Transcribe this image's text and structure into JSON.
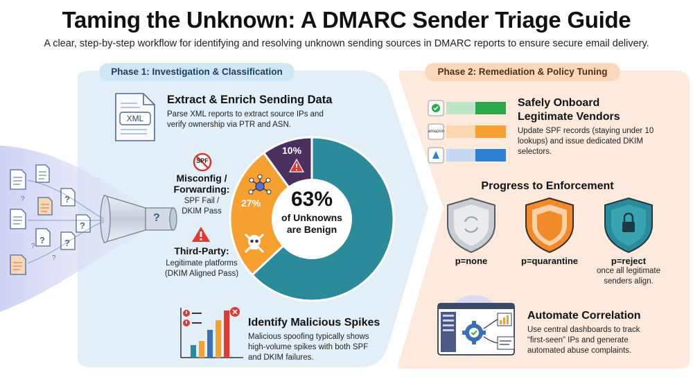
{
  "header": {
    "title": "Taming the Unknown: A DMARC Sender Triage Guide",
    "subtitle": "A clear, step-by-step workflow for identifying and resolving unknown sending sources in DMARC reports to ensure secure email delivery."
  },
  "phase1": {
    "label": "Phase 1: Investigation & Classification",
    "extract": {
      "title": "Extract & Enrich Sending Data",
      "desc": "Parse XML reports to extract source IPs and verify ownership via PTR and ASN.",
      "icon_text": "XML"
    },
    "misconfig": {
      "icon_text": "SPF",
      "title_line1": "Misconfig /",
      "title_line2": "Forwarding:",
      "desc_line1": "SPF Fail /",
      "desc_line2": "DKIM Pass"
    },
    "third_party": {
      "title": "Third-Party:",
      "desc_line1": "Legitimate platforms",
      "desc_line2": "(DKIM Aligned Pass)"
    },
    "spikes": {
      "title": "Identify Malicious Spikes",
      "desc_line1": "Malicious spoofing typically shows",
      "desc_line2": "high-volume spikes with both SPF",
      "desc_line3": "and DKIM failures."
    }
  },
  "chart_data": {
    "type": "pie",
    "center_line1": "63%",
    "center_line2": "of Unknowns",
    "center_line3": "are Benign",
    "slices": [
      {
        "label": "27%",
        "value": 27,
        "color": "#f5a031"
      },
      {
        "label": "10%",
        "value": 10,
        "color": "#4b2f5e"
      },
      {
        "label": "",
        "value": 63,
        "color": "#2b8b9a"
      }
    ]
  },
  "phase2": {
    "label": "Phase 2: Remediation & Policy Tuning",
    "onboard": {
      "title_line1": "Safely Onboard",
      "title_line2": "Legitimate Vendors",
      "desc_line1": "Update SPF records (staying under 10",
      "desc_line2": "lookups) and issue dedicated DKIM",
      "desc_line3": "selectors.",
      "vendor_text": "amazon"
    },
    "enforcement": {
      "title": "Progress to Enforcement",
      "policies": [
        {
          "label": "p=none",
          "note": ""
        },
        {
          "label": "p=quarantine",
          "note": ""
        },
        {
          "label": "p=reject",
          "note_line1": "once all legitimate",
          "note_line2": "senders align."
        }
      ]
    },
    "automate": {
      "title": "Automate Correlation",
      "desc_line1": "Use central dashboards to track",
      "desc_line2": "“first-seen” IPs and generate",
      "desc_line3": "automated abuse complaints."
    }
  },
  "funnel": {
    "q_mark": "?"
  },
  "colors": {
    "phase1_bg": "#e3f0f8",
    "phase2_bg": "#fdeadb",
    "teal": "#2b8b9a",
    "orange": "#f5a031",
    "purple": "#4b2f5e"
  }
}
